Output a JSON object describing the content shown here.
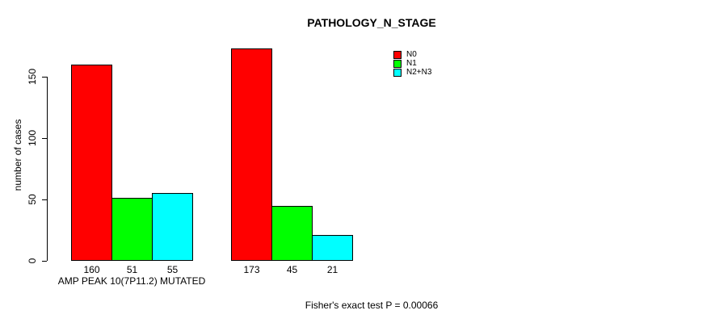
{
  "chart_data": {
    "type": "bar",
    "title": "PATHOLOGY_N_STAGE",
    "ylabel": "number of cases",
    "xlabel": "AMP PEAK 10(7P11.2) MUTATED",
    "yticks": [
      0,
      50,
      100,
      150
    ],
    "ylim": [
      0,
      175
    ],
    "grid": false,
    "legend_position": "top-right",
    "group_count": 2,
    "series": [
      {
        "name": "N0",
        "color": "#FF0000",
        "values": [
          160,
          173
        ]
      },
      {
        "name": "N1",
        "color": "#00FF00",
        "values": [
          51,
          45
        ]
      },
      {
        "name": "N2+N3",
        "color": "#00FFFF",
        "values": [
          55,
          21
        ]
      }
    ],
    "bar_value_labels": true,
    "annotation": "Fisher's exact test P = 0.00066"
  },
  "colors": {
    "bar_border": "#000000",
    "text": "#000000",
    "background": "#FFFFFF"
  }
}
